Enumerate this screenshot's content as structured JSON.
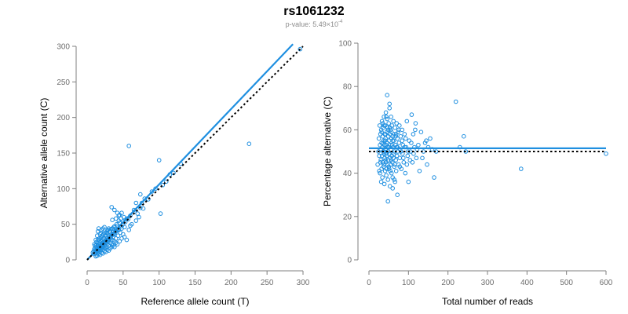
{
  "header": {
    "title": "rs1061232",
    "subtitle_prefix": "p-value: 5.49×10",
    "subtitle_exponent": "-4"
  },
  "colors": {
    "points": "#1f8fe0",
    "fit_line": "#1f8fe0",
    "reference_line": "#000000",
    "axis": "#7f7f7f",
    "tick_text": "#6e6e6e"
  },
  "chart_data": [
    {
      "type": "scatter",
      "xlabel": "Reference allele count (T)",
      "ylabel": "Alternative allele count (C)",
      "xlim": [
        0,
        300
      ],
      "ylim": [
        0,
        300
      ],
      "xticks": [
        0,
        50,
        100,
        150,
        200,
        250,
        300
      ],
      "yticks": [
        0,
        50,
        100,
        150,
        200,
        250,
        300
      ],
      "grid": false,
      "lines": [
        {
          "style": "solid",
          "x": [
            0,
            286
          ],
          "y": [
            0,
            303
          ]
        },
        {
          "style": "dotted",
          "x": [
            0,
            300
          ],
          "y": [
            0,
            300
          ]
        }
      ],
      "points": [
        [
          8,
          10
        ],
        [
          9,
          12
        ],
        [
          10,
          8
        ],
        [
          10,
          15
        ],
        [
          11,
          11
        ],
        [
          11,
          20
        ],
        [
          12,
          14
        ],
        [
          12,
          9
        ],
        [
          13,
          18
        ],
        [
          13,
          25
        ],
        [
          14,
          12
        ],
        [
          14,
          16
        ],
        [
          15,
          20
        ],
        [
          15,
          10
        ],
        [
          15,
          28
        ],
        [
          16,
          14
        ],
        [
          16,
          22
        ],
        [
          17,
          18
        ],
        [
          17,
          12
        ],
        [
          17,
          30
        ],
        [
          18,
          16
        ],
        [
          18,
          24
        ],
        [
          18,
          20
        ],
        [
          19,
          14
        ],
        [
          19,
          26
        ],
        [
          20,
          18
        ],
        [
          20,
          22
        ],
        [
          20,
          32
        ],
        [
          21,
          16
        ],
        [
          21,
          28
        ],
        [
          22,
          20
        ],
        [
          22,
          24
        ],
        [
          22,
          14
        ],
        [
          23,
          30
        ],
        [
          23,
          18
        ],
        [
          24,
          26
        ],
        [
          24,
          22
        ],
        [
          25,
          34
        ],
        [
          25,
          16
        ],
        [
          25,
          20
        ],
        [
          26,
          28
        ],
        [
          26,
          24
        ],
        [
          27,
          38
        ],
        [
          27,
          18
        ],
        [
          28,
          22
        ],
        [
          28,
          30
        ],
        [
          29,
          26
        ],
        [
          29,
          42
        ],
        [
          30,
          20
        ],
        [
          30,
          34
        ],
        [
          31,
          28
        ],
        [
          32,
          24
        ],
        [
          32,
          40
        ],
        [
          33,
          30
        ],
        [
          34,
          36
        ],
        [
          34,
          22
        ],
        [
          35,
          44
        ],
        [
          35,
          28
        ],
        [
          36,
          32
        ],
        [
          37,
          46
        ],
        [
          38,
          26
        ],
        [
          38,
          36
        ],
        [
          40,
          40
        ],
        [
          40,
          30
        ],
        [
          42,
          48
        ],
        [
          43,
          34
        ],
        [
          44,
          42
        ],
        [
          45,
          52
        ],
        [
          46,
          38
        ],
        [
          48,
          44
        ],
        [
          50,
          36
        ],
        [
          50,
          54
        ],
        [
          52,
          46
        ],
        [
          55,
          58
        ],
        [
          58,
          42
        ],
        [
          60,
          62
        ],
        [
          62,
          50
        ],
        [
          65,
          70
        ],
        [
          68,
          55
        ],
        [
          72,
          60
        ],
        [
          10,
          22
        ],
        [
          12,
          28
        ],
        [
          14,
          34
        ],
        [
          15,
          40
        ],
        [
          18,
          36
        ],
        [
          16,
          44
        ],
        [
          20,
          42
        ],
        [
          19,
          38
        ],
        [
          22,
          44
        ],
        [
          24,
          46
        ],
        [
          12,
          5
        ],
        [
          14,
          6
        ],
        [
          16,
          8
        ],
        [
          18,
          7
        ],
        [
          20,
          10
        ],
        [
          22,
          9
        ],
        [
          24,
          12
        ],
        [
          26,
          11
        ],
        [
          28,
          14
        ],
        [
          30,
          13
        ],
        [
          32,
          16
        ],
        [
          34,
          18
        ],
        [
          36,
          20
        ],
        [
          38,
          18
        ],
        [
          40,
          24
        ],
        [
          42,
          22
        ],
        [
          45,
          26
        ],
        [
          48,
          30
        ],
        [
          52,
          32
        ],
        [
          55,
          28
        ],
        [
          13,
          13
        ],
        [
          15,
          15
        ],
        [
          17,
          17
        ],
        [
          19,
          19
        ],
        [
          21,
          21
        ],
        [
          23,
          23
        ],
        [
          25,
          25
        ],
        [
          27,
          27
        ],
        [
          29,
          29
        ],
        [
          31,
          31
        ],
        [
          33,
          33
        ],
        [
          35,
          35
        ],
        [
          37,
          37
        ],
        [
          39,
          39
        ],
        [
          41,
          41
        ],
        [
          43,
          43
        ],
        [
          47,
          47
        ],
        [
          49,
          49
        ],
        [
          53,
          53
        ],
        [
          57,
          57
        ],
        [
          11,
          17
        ],
        [
          13,
          21
        ],
        [
          15,
          24
        ],
        [
          17,
          27
        ],
        [
          19,
          31
        ],
        [
          21,
          34
        ],
        [
          23,
          36
        ],
        [
          25,
          38
        ],
        [
          28,
          41
        ],
        [
          30,
          44
        ],
        [
          26,
          35
        ],
        [
          28,
          37
        ],
        [
          31,
          40
        ],
        [
          33,
          43
        ],
        [
          36,
          44
        ],
        [
          38,
          47
        ],
        [
          41,
          50
        ],
        [
          44,
          55
        ],
        [
          47,
          58
        ],
        [
          51,
          60
        ],
        [
          34,
          74
        ],
        [
          38,
          70
        ],
        [
          42,
          66
        ],
        [
          45,
          63
        ],
        [
          60,
          48
        ],
        [
          66,
          68
        ],
        [
          70,
          65
        ],
        [
          74,
          73
        ],
        [
          76,
          80
        ],
        [
          80,
          86
        ],
        [
          58,
          160
        ],
        [
          68,
          80
        ],
        [
          74,
          92
        ],
        [
          78,
          72
        ],
        [
          85,
          85
        ],
        [
          90,
          96
        ],
        [
          95,
          100
        ],
        [
          100,
          140
        ],
        [
          102,
          65
        ],
        [
          105,
          105
        ],
        [
          110,
          110
        ],
        [
          115,
          120
        ],
        [
          120,
          122
        ],
        [
          130,
          135
        ],
        [
          225,
          163
        ],
        [
          296,
          296
        ],
        [
          35,
          56
        ],
        [
          40,
          58
        ],
        [
          44,
          62
        ],
        [
          48,
          66
        ]
      ]
    },
    {
      "type": "scatter",
      "xlabel": "Total number of reads",
      "ylabel": "Percentage alternative (C)",
      "xlim": [
        0,
        600
      ],
      "ylim": [
        0,
        100
      ],
      "xticks": [
        0,
        100,
        200,
        300,
        400,
        500,
        600
      ],
      "yticks": [
        0,
        20,
        40,
        60,
        80,
        100
      ],
      "grid": false,
      "lines": [
        {
          "style": "solid",
          "x": [
            0,
            600
          ],
          "y": [
            51.5,
            51.5
          ]
        },
        {
          "style": "dotted",
          "x": [
            0,
            600
          ],
          "y": [
            50,
            50
          ]
        }
      ],
      "points": [
        [
          22,
          44
        ],
        [
          24,
          50
        ],
        [
          25,
          56
        ],
        [
          26,
          48
        ],
        [
          27,
          62
        ],
        [
          28,
          40
        ],
        [
          28,
          53
        ],
        [
          29,
          58
        ],
        [
          30,
          46
        ],
        [
          30,
          51
        ],
        [
          31,
          36
        ],
        [
          31,
          60
        ],
        [
          32,
          54
        ],
        [
          32,
          42
        ],
        [
          33,
          48
        ],
        [
          33,
          64
        ],
        [
          34,
          52
        ],
        [
          34,
          38
        ],
        [
          35,
          57
        ],
        [
          35,
          45
        ],
        [
          36,
          50
        ],
        [
          36,
          61
        ],
        [
          37,
          43
        ],
        [
          37,
          55
        ],
        [
          38,
          49
        ],
        [
          38,
          66
        ],
        [
          39,
          35
        ],
        [
          39,
          53
        ],
        [
          40,
          58
        ],
        [
          40,
          47
        ],
        [
          41,
          41
        ],
        [
          41,
          62
        ],
        [
          42,
          51
        ],
        [
          42,
          56
        ],
        [
          43,
          45
        ],
        [
          43,
          68
        ],
        [
          44,
          53
        ],
        [
          44,
          39
        ],
        [
          45,
          59
        ],
        [
          45,
          48
        ],
        [
          46,
          76
        ],
        [
          46,
          54
        ],
        [
          47,
          44
        ],
        [
          47,
          61
        ],
        [
          48,
          50
        ],
        [
          48,
          37
        ],
        [
          49,
          57
        ],
        [
          49,
          46
        ],
        [
          50,
          63
        ],
        [
          50,
          52
        ],
        [
          51,
          42
        ],
        [
          51,
          55
        ],
        [
          52,
          49
        ],
        [
          52,
          72
        ],
        [
          53,
          58
        ],
        [
          53,
          34
        ],
        [
          54,
          47
        ],
        [
          54,
          53
        ],
        [
          55,
          60
        ],
        [
          55,
          44
        ],
        [
          56,
          51
        ],
        [
          56,
          66
        ],
        [
          57,
          40
        ],
        [
          57,
          56
        ],
        [
          58,
          48
        ],
        [
          58,
          62
        ],
        [
          59,
          53
        ],
        [
          59,
          45
        ],
        [
          60,
          57
        ],
        [
          60,
          38
        ],
        [
          61,
          52
        ],
        [
          62,
          64
        ],
        [
          62,
          47
        ],
        [
          63,
          55
        ],
        [
          64,
          43
        ],
        [
          64,
          58
        ],
        [
          65,
          50
        ],
        [
          66,
          36
        ],
        [
          66,
          61
        ],
        [
          67,
          53
        ],
        [
          68,
          46
        ],
        [
          68,
          57
        ],
        [
          69,
          41
        ],
        [
          70,
          52
        ],
        [
          70,
          63
        ],
        [
          71,
          48
        ],
        [
          72,
          56
        ],
        [
          72,
          30
        ],
        [
          73,
          50
        ],
        [
          74,
          59
        ],
        [
          75,
          44
        ],
        [
          76,
          54
        ],
        [
          77,
          62
        ],
        [
          78,
          47
        ],
        [
          79,
          51
        ],
        [
          80,
          57
        ],
        [
          82,
          42
        ],
        [
          84,
          60
        ],
        [
          85,
          49
        ],
        [
          86,
          53
        ],
        [
          88,
          45
        ],
        [
          90,
          58
        ],
        [
          92,
          40
        ],
        [
          94,
          52
        ],
        [
          96,
          64
        ],
        [
          98,
          48
        ],
        [
          100,
          36
        ],
        [
          102,
          55
        ],
        [
          105,
          50
        ],
        [
          108,
          67
        ],
        [
          110,
          45
        ],
        [
          112,
          58
        ],
        [
          115,
          52
        ],
        [
          118,
          63
        ],
        [
          120,
          47
        ],
        [
          125,
          53
        ],
        [
          128,
          41
        ],
        [
          132,
          59
        ],
        [
          138,
          50
        ],
        [
          145,
          55
        ],
        [
          150,
          52
        ],
        [
          155,
          56
        ],
        [
          160,
          51
        ],
        [
          165,
          38
        ],
        [
          170,
          50
        ],
        [
          220,
          73
        ],
        [
          230,
          52
        ],
        [
          240,
          57
        ],
        [
          245,
          50
        ],
        [
          385,
          42
        ],
        [
          600,
          49
        ],
        [
          48,
          27
        ],
        [
          60,
          33
        ],
        [
          44,
          66
        ],
        [
          52,
          70
        ],
        [
          38,
          62
        ],
        [
          42,
          58
        ],
        [
          46,
          65
        ],
        [
          56,
          46
        ],
        [
          64,
          37
        ],
        [
          26,
          41
        ],
        [
          29,
          45
        ],
        [
          32,
          59
        ],
        [
          35,
          63
        ],
        [
          38,
          44
        ],
        [
          41,
          55
        ],
        [
          44,
          49
        ],
        [
          47,
          52
        ],
        [
          50,
          43
        ],
        [
          53,
          61
        ],
        [
          36,
          54
        ],
        [
          39,
          50
        ],
        [
          42,
          46
        ],
        [
          45,
          42
        ],
        [
          48,
          60
        ],
        [
          51,
          49
        ],
        [
          54,
          41
        ],
        [
          57,
          59
        ],
        [
          60,
          55
        ],
        [
          63,
          49
        ],
        [
          66,
          44
        ],
        [
          69,
          58
        ],
        [
          72,
          52
        ],
        [
          75,
          60
        ],
        [
          78,
          43
        ],
        [
          81,
          50
        ],
        [
          84,
          55
        ],
        [
          87,
          47
        ],
        [
          90,
          52
        ],
        [
          93,
          56
        ],
        [
          96,
          44
        ],
        [
          99,
          50
        ],
        [
          104,
          46
        ],
        [
          107,
          54
        ],
        [
          113,
          49
        ],
        [
          117,
          60
        ],
        [
          122,
          51
        ],
        [
          135,
          47
        ],
        [
          142,
          54
        ],
        [
          147,
          44
        ]
      ]
    }
  ]
}
